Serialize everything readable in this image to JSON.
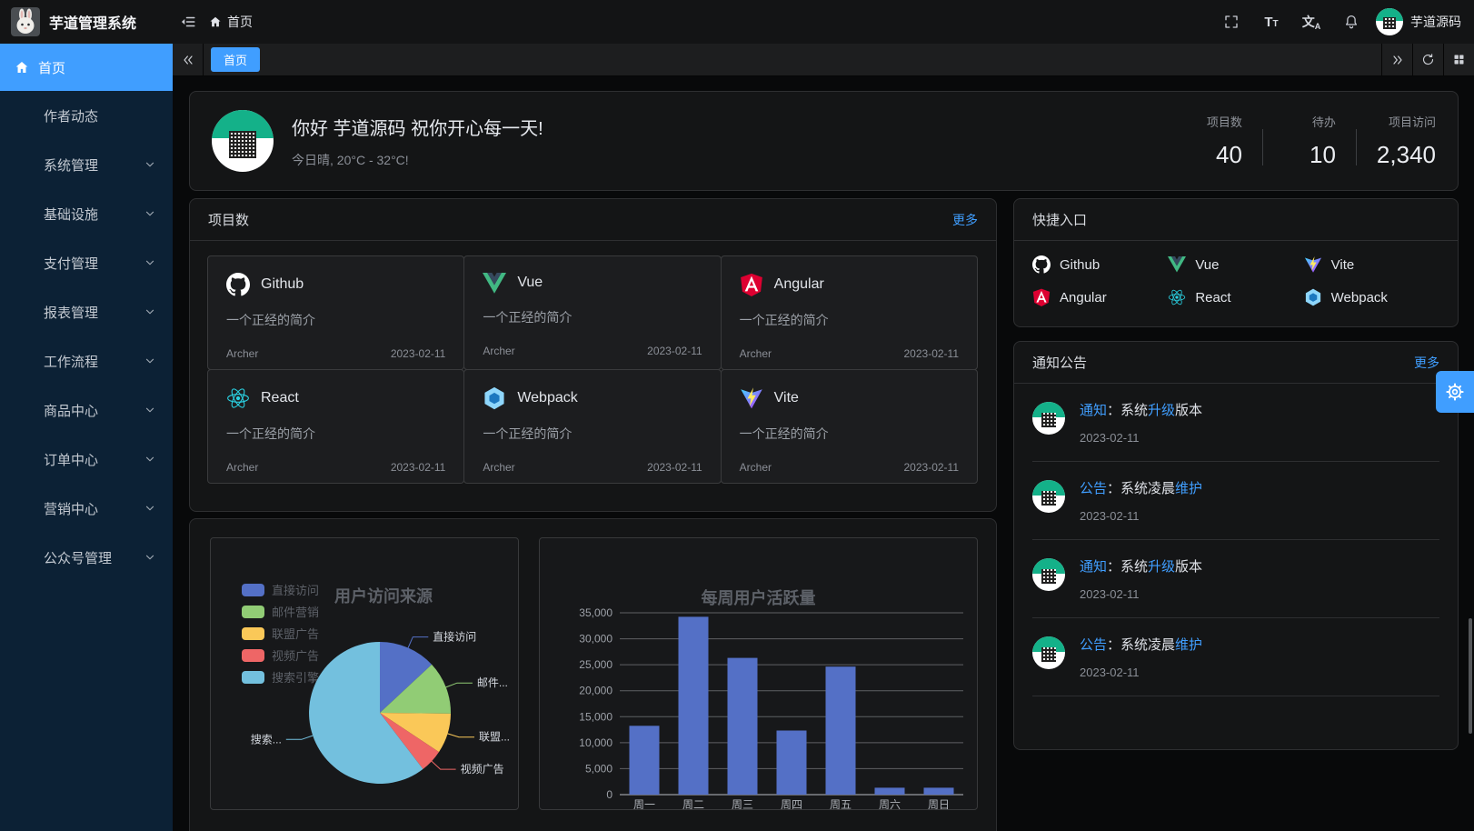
{
  "app": {
    "title": "芋道管理系统",
    "accent": "#409eff"
  },
  "topbar": {
    "breadcrumb": "首页",
    "username": "芋道源码",
    "icons": [
      "fold-icon",
      "fullscreen-icon",
      "fontsize-icon",
      "language-icon",
      "bell-icon"
    ]
  },
  "sidebar": {
    "items": [
      {
        "key": "home",
        "label": "首页",
        "active": true,
        "icon": "home",
        "arrow": false
      },
      {
        "key": "author-news",
        "label": "作者动态",
        "active": false,
        "arrow": false
      },
      {
        "key": "system",
        "label": "系统管理",
        "active": false,
        "arrow": true
      },
      {
        "key": "infrastructure",
        "label": "基础设施",
        "active": false,
        "arrow": true
      },
      {
        "key": "payment",
        "label": "支付管理",
        "active": false,
        "arrow": true
      },
      {
        "key": "report",
        "label": "报表管理",
        "active": false,
        "arrow": true
      },
      {
        "key": "workflow",
        "label": "工作流程",
        "active": false,
        "arrow": true
      },
      {
        "key": "product-center",
        "label": "商品中心",
        "active": false,
        "arrow": true
      },
      {
        "key": "order-center",
        "label": "订单中心",
        "active": false,
        "arrow": true
      },
      {
        "key": "marketing-center",
        "label": "营销中心",
        "active": false,
        "arrow": true
      },
      {
        "key": "official-account",
        "label": "公众号管理",
        "active": false,
        "arrow": true
      }
    ]
  },
  "tabbar": {
    "tabs": [
      {
        "label": "首页",
        "active": true
      }
    ]
  },
  "welcome": {
    "greeting": "你好 芋道源码 祝你开心每一天!",
    "weather": "今日晴, 20°C - 32°C!"
  },
  "stats": [
    {
      "label": "项目数",
      "value": "40"
    },
    {
      "label": "待办",
      "value": "10"
    },
    {
      "label": "项目访问",
      "value": "2,340"
    }
  ],
  "projects": {
    "title": "项目数",
    "more": "更多",
    "items": [
      {
        "name": "Github",
        "icon": "github",
        "desc": "一个正经的简介",
        "author": "Archer",
        "date": "2023-02-11"
      },
      {
        "name": "Vue",
        "icon": "vue",
        "desc": "一个正经的简介",
        "author": "Archer",
        "date": "2023-02-11"
      },
      {
        "name": "Angular",
        "icon": "angular",
        "desc": "一个正经的简介",
        "author": "Archer",
        "date": "2023-02-11"
      },
      {
        "name": "React",
        "icon": "react",
        "desc": "一个正经的简介",
        "author": "Archer",
        "date": "2023-02-11"
      },
      {
        "name": "Webpack",
        "icon": "webpack",
        "desc": "一个正经的简介",
        "author": "Archer",
        "date": "2023-02-11"
      },
      {
        "name": "Vite",
        "icon": "vite",
        "desc": "一个正经的简介",
        "author": "Archer",
        "date": "2023-02-11"
      }
    ]
  },
  "shortcuts": {
    "title": "快捷入口",
    "items": [
      {
        "name": "Github",
        "icon": "github"
      },
      {
        "name": "Vue",
        "icon": "vue"
      },
      {
        "name": "Vite",
        "icon": "vite"
      },
      {
        "name": "Angular",
        "icon": "angular"
      },
      {
        "name": "React",
        "icon": "react"
      },
      {
        "name": "Webpack",
        "icon": "webpack"
      }
    ]
  },
  "notices": {
    "title": "通知公告",
    "more": "更多",
    "items": [
      {
        "segments": [
          {
            "t": "通知",
            "hl": true
          },
          {
            "t": "：系统",
            "hl": false
          },
          {
            "t": "升级",
            "hl": true
          },
          {
            "t": "版本",
            "hl": false
          }
        ],
        "date": "2023-02-11"
      },
      {
        "segments": [
          {
            "t": "公告",
            "hl": true
          },
          {
            "t": "：系统凌晨",
            "hl": false
          },
          {
            "t": "维护",
            "hl": true
          }
        ],
        "date": "2023-02-11"
      },
      {
        "segments": [
          {
            "t": "通知",
            "hl": true
          },
          {
            "t": "：系统",
            "hl": false
          },
          {
            "t": "升级",
            "hl": true
          },
          {
            "t": "版本",
            "hl": false
          }
        ],
        "date": "2023-02-11"
      },
      {
        "segments": [
          {
            "t": "公告",
            "hl": true
          },
          {
            "t": "：系统凌晨",
            "hl": false
          },
          {
            "t": "维护",
            "hl": true
          }
        ],
        "date": "2023-02-11"
      }
    ]
  },
  "chart_data": [
    {
      "type": "pie",
      "title": "用户访问来源",
      "legend_position": "left",
      "legend": [
        "直接访问",
        "邮件营销",
        "联盟广告",
        "视频广告",
        "搜索引擎"
      ],
      "series": [
        {
          "name": "直接访问",
          "value": 335
        },
        {
          "name": "邮件营销",
          "value": 310
        },
        {
          "name": "联盟广告",
          "value": 234
        },
        {
          "name": "视频广告",
          "value": 135
        },
        {
          "name": "搜索引擎",
          "value": 1548
        }
      ],
      "display_labels": [
        "直接访问",
        "邮件...",
        "联盟...",
        "视频广告",
        "搜索..."
      ],
      "colors": [
        "#5470c6",
        "#91cc75",
        "#fac858",
        "#ee6666",
        "#73c0de"
      ]
    },
    {
      "type": "bar",
      "title": "每周用户活跃量",
      "categories": [
        "周一",
        "周二",
        "周三",
        "周四",
        "周五",
        "周六",
        "周日"
      ],
      "values": [
        13253,
        34235,
        26321,
        12340,
        24643,
        1322,
        1324
      ],
      "xlabel": "",
      "ylabel": "",
      "ylim": [
        0,
        35000
      ],
      "ytick_step": 5000,
      "grid": true,
      "legend_position": "none",
      "bar_color": "#5470c6"
    }
  ]
}
